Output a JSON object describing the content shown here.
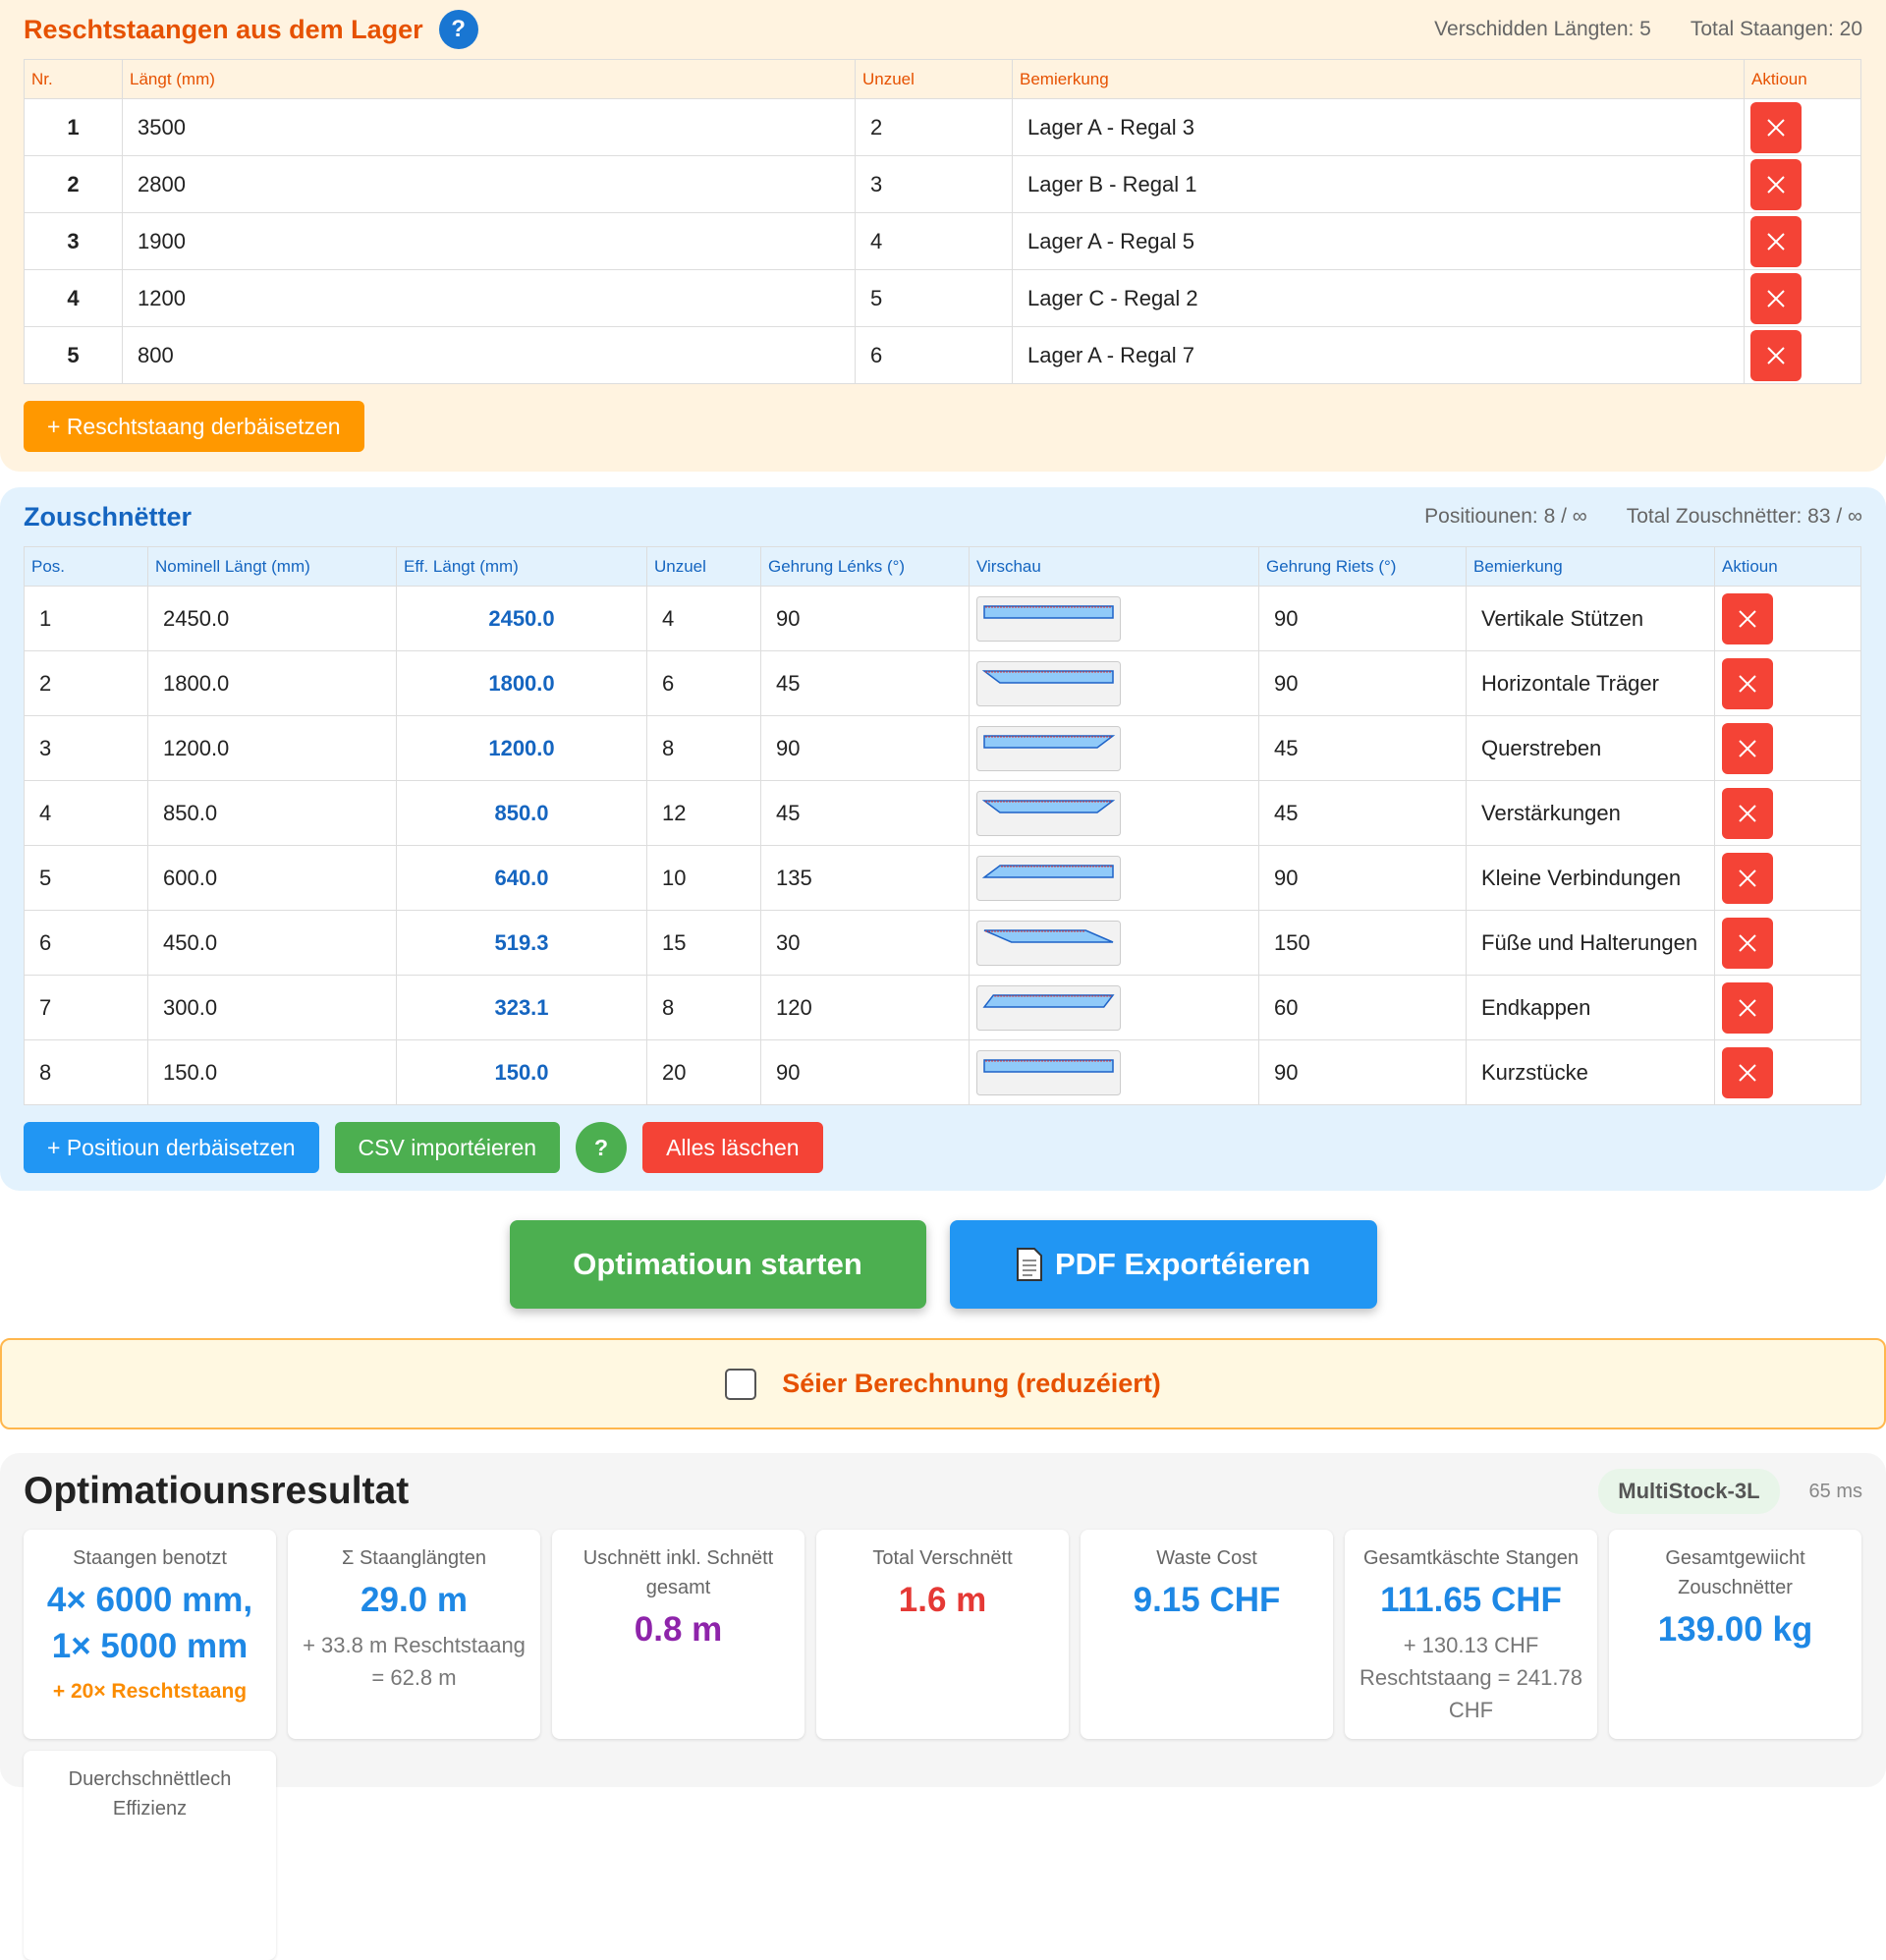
{
  "stock": {
    "title": "Reschtstaangen aus dem Lager",
    "help": "?",
    "stats": [
      "Verschidden Längten: 5",
      "Total Staangen: 20"
    ],
    "columns": [
      "Nr.",
      "Längt (mm)",
      "Unzuel",
      "Bemierkung",
      "Aktioun"
    ],
    "rows": [
      [
        "1",
        "3500",
        "2",
        "Lager A - Regal 3"
      ],
      [
        "2",
        "2800",
        "3",
        "Lager B - Regal 1"
      ],
      [
        "3",
        "1900",
        "4",
        "Lager A - Regal 5"
      ],
      [
        "4",
        "1200",
        "5",
        "Lager C - Regal 2"
      ],
      [
        "5",
        "800",
        "6",
        "Lager A - Regal 7"
      ]
    ],
    "add_button": "+ Reschtstaang derbäisetzen"
  },
  "cuts": {
    "title": "Zouschnëtter",
    "stats": [
      "Positiounen: 8 / ∞",
      "Total Zouschnëtter: 83 / ∞"
    ],
    "columns": [
      "Pos.",
      "Nominell Längt (mm)",
      "Eff. Längt (mm)",
      "Unzuel",
      "Gehrung Lénks (°)",
      "Virschau",
      "Gehrung Riets (°)",
      "Bemierkung",
      "Aktioun"
    ],
    "rows": [
      [
        "1",
        "2450.0",
        "2450.0",
        "4",
        "90",
        "90",
        "Vertikale Stützen"
      ],
      [
        "2",
        "1800.0",
        "1800.0",
        "6",
        "45",
        "90",
        "Horizontale Träger"
      ],
      [
        "3",
        "1200.0",
        "1200.0",
        "8",
        "90",
        "45",
        "Querstreben"
      ],
      [
        "4",
        "850.0",
        "850.0",
        "12",
        "45",
        "45",
        "Verstärkungen"
      ],
      [
        "5",
        "600.0",
        "640.0",
        "10",
        "135",
        "90",
        "Kleine Verbindungen"
      ],
      [
        "6",
        "450.0",
        "519.3",
        "15",
        "30",
        "150",
        "Füße und Halterungen"
      ],
      [
        "7",
        "300.0",
        "323.1",
        "8",
        "120",
        "60",
        "Endkappen"
      ],
      [
        "8",
        "150.0",
        "150.0",
        "20",
        "90",
        "90",
        "Kurzstücke"
      ]
    ],
    "buttons": [
      "+ Positioun derbäisetzen",
      "CSV importéieren",
      "?",
      "Alles läschen"
    ]
  },
  "actions": {
    "optimize": "Optimatioun starten",
    "pdf": "PDF Exportéieren"
  },
  "fast_mode": {
    "label": "Séier Berechnung (reduzéiert)",
    "checked": false
  },
  "results": {
    "title": "Optimatiounsresultat",
    "algorithm": "MultiStock-3L",
    "time": "65 ms",
    "cards": [
      {
        "label": "Staangen benotzt",
        "value": "4× 6000 mm, 1× 5000 mm",
        "color": "#1e88e5",
        "note": "+ 20× Reschtstaang",
        "note_color": "#fb8c00"
      },
      {
        "label": "Σ Staanglängten",
        "value": "29.0 m",
        "color": "#1e88e5",
        "note": "+ 33.8 m Reschtstaang = 62.8 m",
        "note_color": "#777777"
      },
      {
        "label": "Uschnëtt inkl. Schnëtt gesamt",
        "value": "0.8 m",
        "color": "#8e24aa"
      },
      {
        "label": "Total Verschnëtt",
        "value": "1.6 m",
        "color": "#e53935"
      },
      {
        "label": "Waste Cost",
        "value": "9.15 CHF",
        "color": "#1e88e5"
      },
      {
        "label": "Gesamtkäschte Stangen",
        "value": "111.65 CHF",
        "color": "#1e88e5",
        "note": "+ 130.13 CHF Reschtstaang = 241.78 CHF",
        "note_color": "#777777"
      },
      {
        "label": "Gesamtgewiicht Zouschnëtter",
        "value": "139.00 kg",
        "color": "#1e88e5"
      },
      {
        "label": "Duerchschnëttlech Effizienz"
      }
    ]
  }
}
